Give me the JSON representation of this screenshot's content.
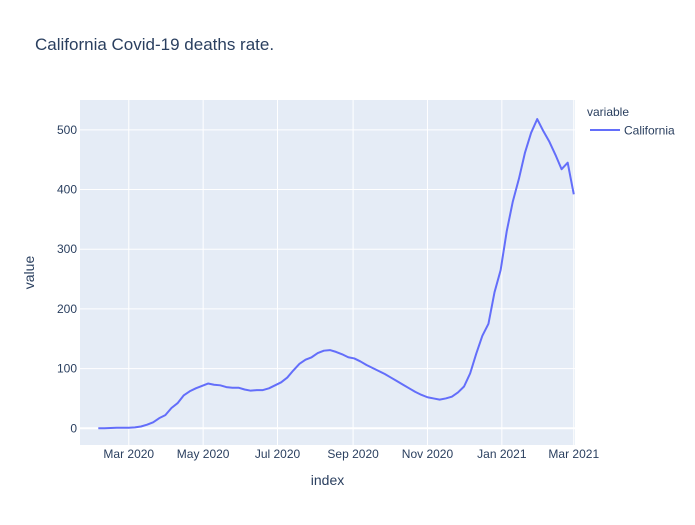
{
  "chart_data": {
    "type": "line",
    "title": "California Covid-19 deaths rate.",
    "xlabel": "index",
    "ylabel": "value",
    "x_ticks": [
      "Mar 2020",
      "May 2020",
      "Jul 2020",
      "Sep 2020",
      "Nov 2020",
      "Jan 2021",
      "Mar 2021"
    ],
    "y_ticks": [
      0,
      100,
      200,
      300,
      400,
      500
    ],
    "xlim": [
      "2020-01-21",
      "2021-03-02"
    ],
    "ylim": [
      -28,
      550
    ],
    "grid": true,
    "legend_title": "variable",
    "legend_position": "top-right",
    "colors": {
      "plot_bg": "#e5ecf6",
      "line": "#636efa",
      "grid": "#ffffff",
      "text": "#2a3f5f"
    },
    "series": [
      {
        "name": "California",
        "x": [
          "2020-02-05",
          "2020-02-10",
          "2020-02-15",
          "2020-02-20",
          "2020-02-25",
          "2020-03-01",
          "2020-03-06",
          "2020-03-11",
          "2020-03-16",
          "2020-03-21",
          "2020-03-26",
          "2020-03-31",
          "2020-04-05",
          "2020-04-10",
          "2020-04-15",
          "2020-04-20",
          "2020-04-25",
          "2020-04-30",
          "2020-05-05",
          "2020-05-10",
          "2020-05-15",
          "2020-05-20",
          "2020-05-25",
          "2020-05-30",
          "2020-06-04",
          "2020-06-09",
          "2020-06-14",
          "2020-06-19",
          "2020-06-24",
          "2020-06-29",
          "2020-07-04",
          "2020-07-09",
          "2020-07-14",
          "2020-07-19",
          "2020-07-24",
          "2020-07-29",
          "2020-08-03",
          "2020-08-08",
          "2020-08-13",
          "2020-08-18",
          "2020-08-23",
          "2020-08-28",
          "2020-09-02",
          "2020-09-07",
          "2020-09-12",
          "2020-09-17",
          "2020-09-22",
          "2020-09-27",
          "2020-10-02",
          "2020-10-07",
          "2020-10-12",
          "2020-10-17",
          "2020-10-22",
          "2020-10-27",
          "2020-11-01",
          "2020-11-06",
          "2020-11-11",
          "2020-11-16",
          "2020-11-21",
          "2020-11-26",
          "2020-12-01",
          "2020-12-06",
          "2020-12-11",
          "2020-12-16",
          "2020-12-21",
          "2020-12-26",
          "2020-12-31",
          "2021-01-05",
          "2021-01-10",
          "2021-01-15",
          "2021-01-20",
          "2021-01-25",
          "2021-01-30",
          "2021-02-04",
          "2021-02-09",
          "2021-02-14",
          "2021-02-19",
          "2021-02-24",
          "2021-03-01"
        ],
        "values": [
          0,
          0,
          0.5,
          0.8,
          1,
          1,
          1.5,
          3,
          6,
          10,
          17,
          22,
          34,
          42,
          55,
          62,
          67,
          71,
          75,
          73,
          72,
          69,
          68,
          68,
          65,
          63,
          64,
          64,
          67,
          72,
          77,
          85,
          97,
          108,
          115,
          119,
          126,
          130,
          131,
          128,
          124,
          119,
          117,
          112,
          106,
          101,
          96,
          91,
          85,
          79,
          73,
          67,
          61,
          56,
          52,
          50,
          48,
          50,
          53,
          60,
          70,
          92,
          125,
          155,
          175,
          228,
          265,
          330,
          380,
          418,
          462,
          495,
          518,
          498,
          480,
          458,
          434,
          445,
          392
        ]
      }
    ]
  }
}
